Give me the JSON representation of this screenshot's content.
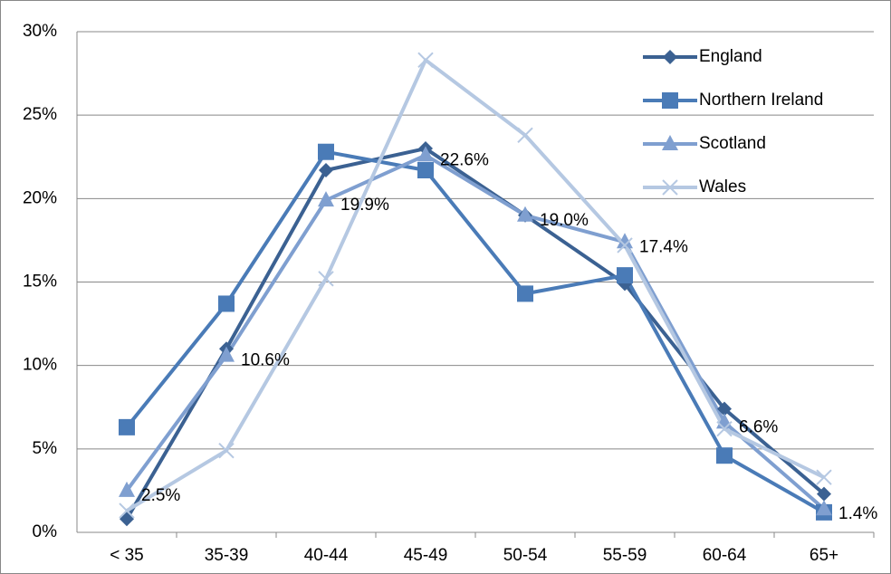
{
  "chart_data": {
    "type": "line",
    "categories": [
      "< 35",
      "35-39",
      "40-44",
      "45-49",
      "50-54",
      "55-59",
      "60-64",
      "65+"
    ],
    "series": [
      {
        "name": "England",
        "color": "#3b6192",
        "marker": "diamond",
        "values": [
          0.8,
          11.0,
          21.7,
          23.0,
          19.0,
          14.9,
          7.4,
          2.3
        ]
      },
      {
        "name": "Northern Ireland",
        "color": "#4a7bb7",
        "marker": "square",
        "values": [
          6.3,
          13.7,
          22.8,
          21.7,
          14.3,
          15.4,
          4.6,
          1.2
        ]
      },
      {
        "name": "Scotland",
        "color": "#7f9fd0",
        "marker": "triangle",
        "values": [
          2.5,
          10.6,
          19.9,
          22.6,
          19.0,
          17.4,
          6.6,
          1.4
        ],
        "value_labels": [
          "2.5%",
          "10.6%",
          "19.9%",
          "22.6%",
          "19.0%",
          "17.4%",
          "6.6%",
          "1.4%"
        ]
      },
      {
        "name": "Wales",
        "color": "#b5c8e2",
        "marker": "x",
        "values": [
          1.3,
          4.9,
          15.2,
          28.3,
          23.8,
          17.2,
          6.2,
          3.3
        ]
      }
    ],
    "ylim": [
      0,
      30
    ],
    "yticks": [
      {
        "value": 0,
        "label": "0%"
      },
      {
        "value": 5,
        "label": "5%"
      },
      {
        "value": 10,
        "label": "10%"
      },
      {
        "value": 15,
        "label": "15%"
      },
      {
        "value": 20,
        "label": "20%"
      },
      {
        "value": 25,
        "label": "25%"
      },
      {
        "value": 30,
        "label": "30%"
      }
    ],
    "grid": true,
    "legend": "upper right"
  }
}
